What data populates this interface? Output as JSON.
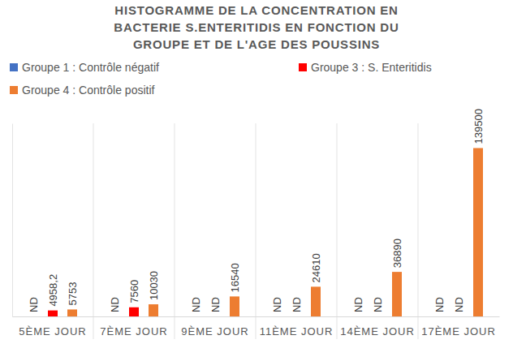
{
  "chart_data": {
    "type": "bar",
    "title": "HISTOGRAMME DE LA CONCENTRATION EN BACTERIE S.ENTERITIDIS EN FONCTION DU GROUPE ET DE L'AGE DES POUSSINS",
    "categories": [
      "5ÈME JOUR",
      "7ÈME JOUR",
      "9ÈME JOUR",
      "11ÈME JOUR",
      "14ÈME JOUR",
      "17ÈME JOUR"
    ],
    "series": [
      {
        "name": "Groupe 1 : Contrôle négatif",
        "color": "#4472c4",
        "values": [
          null,
          null,
          null,
          null,
          null,
          null
        ],
        "value_labels": [
          "ND",
          "ND",
          "ND",
          "ND",
          "ND",
          "ND"
        ]
      },
      {
        "name": "Groupe 3 : S. Enteritidis",
        "color": "#ff0000",
        "values": [
          4958.2,
          7560,
          null,
          null,
          null,
          null
        ],
        "value_labels": [
          "4958,2",
          "7560",
          "ND",
          "ND",
          "ND",
          "ND"
        ]
      },
      {
        "name": "Groupe 4  : Contrôle positif",
        "color": "#ed7d31",
        "values": [
          5753,
          10030,
          16540,
          24610,
          36890,
          139500
        ]
      }
    ],
    "ylim": [
      0,
      160000
    ],
    "data_labels": true,
    "tick_labels": "x",
    "legend": "top",
    "grid": false
  }
}
